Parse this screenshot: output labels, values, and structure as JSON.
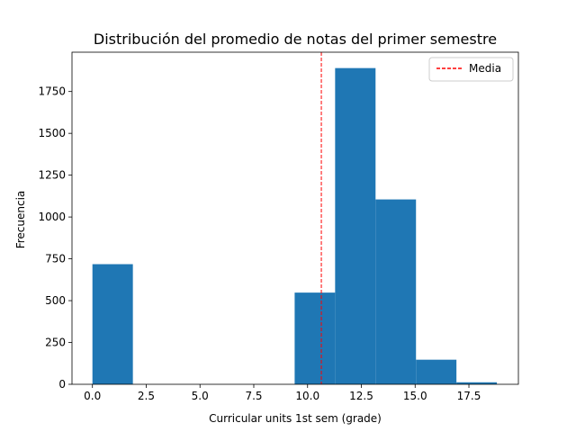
{
  "chart_data": {
    "type": "bar",
    "subtype": "histogram",
    "title": "Distribución del promedio de notas del primer semestre",
    "xlabel": "Curricular units 1st sem (grade)",
    "ylabel": "Frecuencia",
    "xlim": [
      -0.95,
      19.8
    ],
    "ylim": [
      0,
      1985
    ],
    "x_ticks": [
      0,
      2.5,
      5,
      7.5,
      10,
      12.5,
      15,
      17.5
    ],
    "x_tick_labels": [
      "0.0",
      "2.5",
      "5.0",
      "7.5",
      "10.0",
      "12.5",
      "15.0",
      "17.5"
    ],
    "y_ticks": [
      0,
      250,
      500,
      750,
      1000,
      1250,
      1500,
      1750
    ],
    "y_tick_labels": [
      "0",
      "250",
      "500",
      "750",
      "1000",
      "1250",
      "1500",
      "1750"
    ],
    "bins": [
      {
        "x0": 0.0,
        "x1": 1.88,
        "count": 718
      },
      {
        "x0": 1.88,
        "x1": 3.76,
        "count": 0
      },
      {
        "x0": 3.76,
        "x1": 5.64,
        "count": 0
      },
      {
        "x0": 5.64,
        "x1": 7.52,
        "count": 0
      },
      {
        "x0": 7.52,
        "x1": 9.4,
        "count": 0
      },
      {
        "x0": 9.4,
        "x1": 11.28,
        "count": 548
      },
      {
        "x0": 11.28,
        "x1": 13.16,
        "count": 1890
      },
      {
        "x0": 13.16,
        "x1": 15.04,
        "count": 1105
      },
      {
        "x0": 15.04,
        "x1": 16.92,
        "count": 147
      },
      {
        "x0": 16.92,
        "x1": 18.8,
        "count": 12
      }
    ],
    "bar_color": "#1f77b4",
    "mean_line": {
      "label": "Media",
      "x": 10.64,
      "color": "#ff0000",
      "style": "dashed"
    },
    "legend": {
      "placement": "top-right",
      "entries": [
        "Media"
      ]
    },
    "grid": false
  }
}
